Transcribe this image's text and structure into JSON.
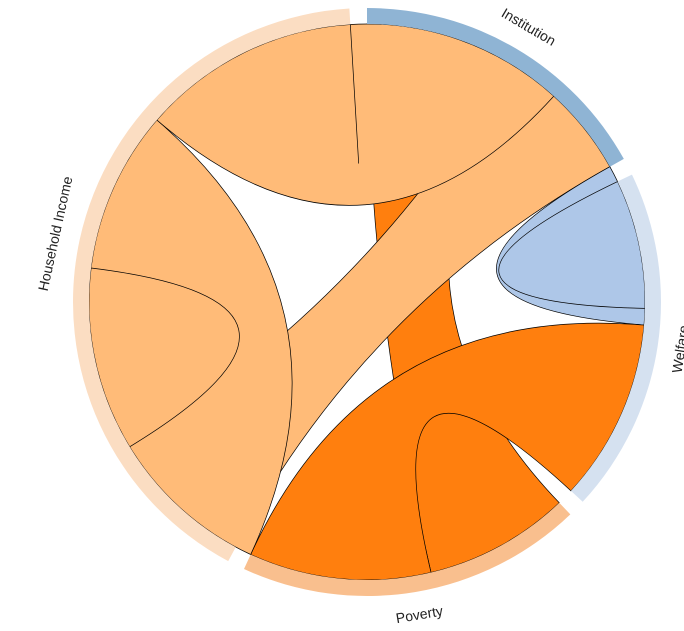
{
  "chart_data": {
    "type": "chord",
    "title": "",
    "groups": [
      {
        "name": "Institution",
        "value": 16,
        "color": "#8fb4d4"
      },
      {
        "name": "Welfare",
        "value": 18,
        "color": "#d5e1f0"
      },
      {
        "name": "Poverty",
        "value": 18,
        "color": "#f9bf8e"
      },
      {
        "name": "Household Income",
        "value": 39,
        "color": "#fbddc2"
      }
    ],
    "chords": [
      {
        "source": "Institution",
        "target": "Poverty",
        "value": 8,
        "color": "#ff7f0e"
      },
      {
        "source": "Institution",
        "target": "Household Income",
        "value": 8,
        "color": "#ffbb78"
      },
      {
        "source": "Welfare",
        "target": "Institution",
        "value": 8,
        "color": "#aec7e8"
      },
      {
        "source": "Welfare",
        "target": "Poverty",
        "value": 10,
        "color": "#ff7f0e"
      },
      {
        "source": "Poverty",
        "target": "Household Income",
        "value": 19,
        "color": "#ffbb78"
      },
      {
        "source": "Household Income",
        "target": "Household Income",
        "value": 12,
        "color": "#ffbb78"
      }
    ]
  }
}
